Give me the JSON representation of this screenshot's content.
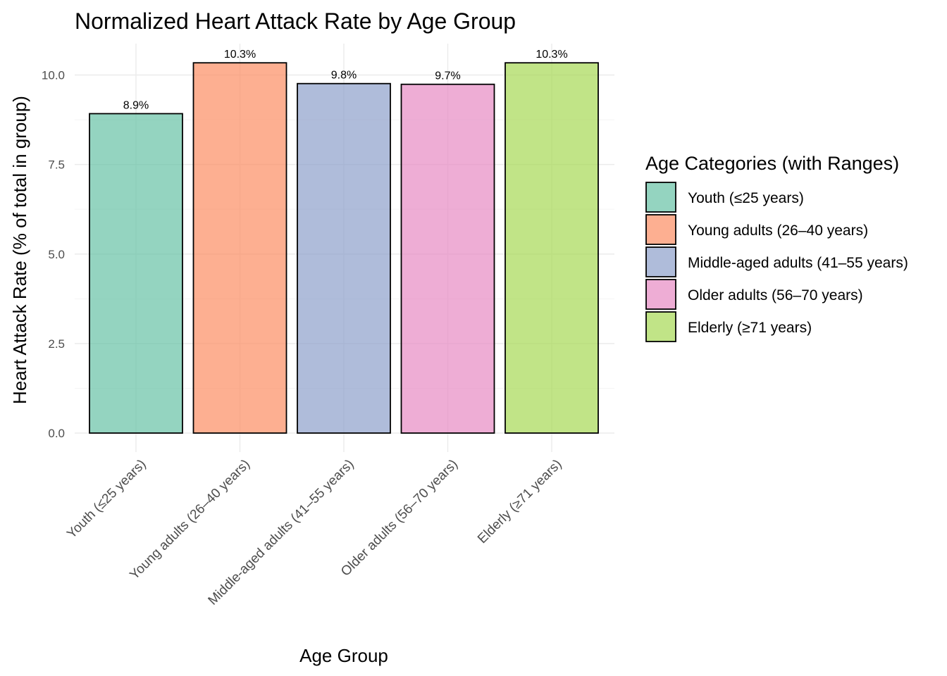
{
  "chart_data": {
    "type": "bar",
    "title": "Normalized Heart Attack Rate by Age Group",
    "xlabel": "Age Group",
    "ylabel": "Heart Attack Rate (% of total in group)",
    "ylim": [
      0,
      10.8
    ],
    "yticks": [
      0,
      2.5,
      5,
      7.5,
      10
    ],
    "ytick_labels": [
      "0.0",
      "2.5",
      "5.0",
      "7.5",
      "10.0"
    ],
    "grid": true,
    "categories": [
      "Youth (≤25 years)",
      "Young adults (26–40 years)",
      "Middle-aged adults (41–55 years)",
      "Older adults (56–70 years)",
      "Elderly (≥71 years)"
    ],
    "values": [
      8.92,
      10.34,
      9.76,
      9.74,
      10.34
    ],
    "data_labels": [
      "8.9%",
      "10.3%",
      "9.8%",
      "9.7%",
      "10.3%"
    ],
    "colors": [
      "#66c2a5",
      "#fc8d62",
      "#8da0cb",
      "#e78ac3",
      "#a6d854"
    ],
    "bar_opacity": 0.7,
    "legend": {
      "title": "Age Categories (with Ranges)",
      "position": "right",
      "entries": [
        "Youth (≤25 years)",
        "Young adults (26–40 years)",
        "Middle-aged adults (41–55 years)",
        "Older adults (56–70 years)",
        "Elderly (≥71 years)"
      ]
    }
  }
}
